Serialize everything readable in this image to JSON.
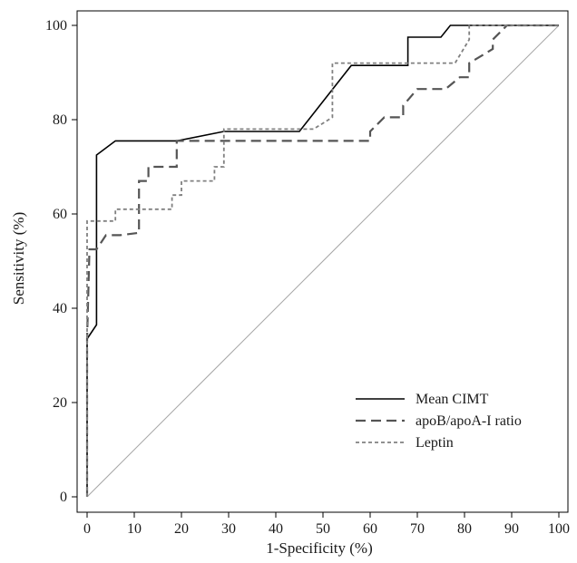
{
  "chart_data": {
    "type": "line",
    "title": "",
    "xlabel": "1-Specificity (%)",
    "ylabel": "Sensitivity (%)",
    "xlim": [
      0,
      100
    ],
    "ylim": [
      0,
      100
    ],
    "xticks": [
      0,
      10,
      20,
      30,
      40,
      50,
      60,
      70,
      80,
      90,
      100
    ],
    "yticks": [
      0,
      20,
      40,
      60,
      80,
      100
    ],
    "grid": false,
    "legend_position": "bottom-right",
    "reference_line": {
      "x": [
        0,
        100
      ],
      "y": [
        0,
        100
      ],
      "color": "#a6a6a6"
    },
    "series": [
      {
        "name": "Mean CIMT",
        "color": "#000000",
        "dash": "solid",
        "x": [
          0,
          0,
          2,
          2,
          6,
          19,
          29,
          45,
          56,
          68,
          68,
          75,
          77,
          100
        ],
        "y": [
          0,
          33.5,
          36.5,
          72.5,
          75.5,
          75.5,
          77.5,
          77.5,
          91.5,
          91.5,
          97.5,
          97.5,
          100,
          100
        ]
      },
      {
        "name": "apoB/apoA-I ratio",
        "color": "#555555",
        "dash": "long",
        "x": [
          0,
          0,
          0.5,
          2,
          4,
          7,
          11,
          11,
          13,
          13,
          19,
          19,
          28,
          60,
          60,
          63,
          67,
          67,
          70,
          76,
          79,
          81,
          81,
          86,
          86,
          89,
          100
        ],
        "y": [
          0,
          33.5,
          52.5,
          52.5,
          55.5,
          55.5,
          56,
          67,
          67,
          70,
          70,
          75.5,
          75.5,
          75.5,
          77.5,
          80.5,
          80.5,
          83,
          86.5,
          86.5,
          89,
          89,
          92,
          95,
          97,
          100,
          100
        ]
      },
      {
        "name": "Leptin",
        "color": "#808080",
        "dash": "short",
        "x": [
          0,
          0,
          6,
          6,
          18,
          18,
          20,
          20,
          27,
          27,
          29,
          29,
          48,
          52,
          52,
          78,
          81,
          81,
          100
        ],
        "y": [
          0,
          58.5,
          58.5,
          61,
          61,
          64,
          64,
          67,
          67,
          70,
          70,
          78,
          78,
          80.5,
          92,
          92,
          97,
          100,
          100
        ]
      }
    ]
  }
}
